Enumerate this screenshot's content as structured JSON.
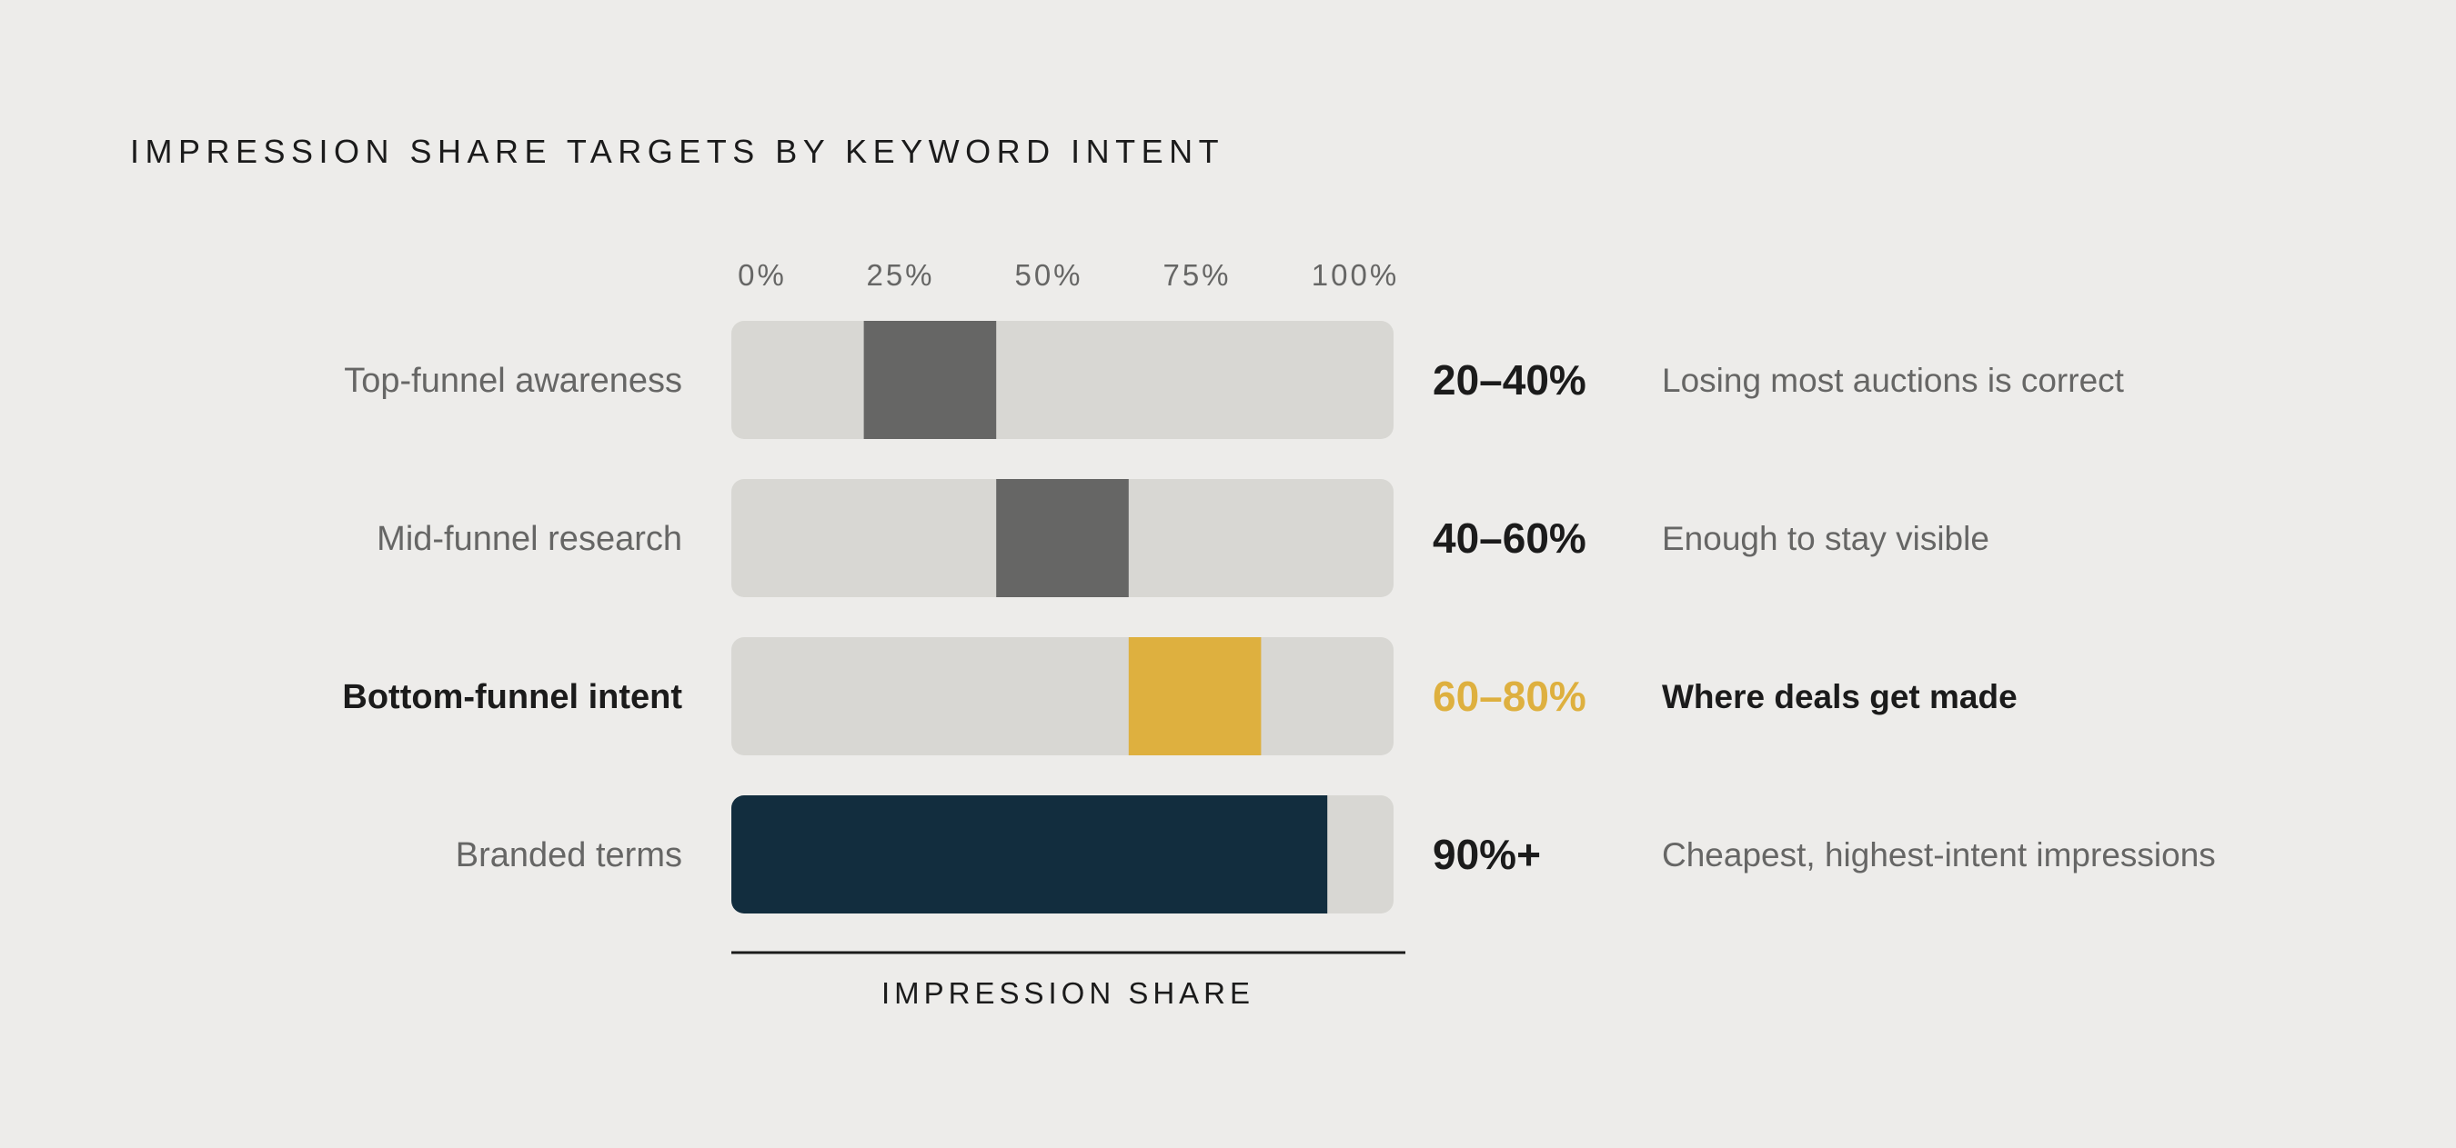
{
  "title": "IMPRESSION SHARE TARGETS BY KEYWORD INTENT",
  "chart_data": {
    "type": "bar",
    "title": "IMPRESSION SHARE TARGETS BY KEYWORD INTENT",
    "xlabel": "IMPRESSION SHARE",
    "ylabel": "",
    "xlim": [
      0,
      100
    ],
    "ticks": [
      "0%",
      "25%",
      "50%",
      "75%",
      "100%"
    ],
    "grid": false,
    "legend": "none",
    "categories": [
      "Top-funnel awareness",
      "Mid-funnel research",
      "Bottom-funnel intent",
      "Branded terms"
    ],
    "series": [
      {
        "ranges": [
          [
            20,
            40
          ],
          [
            40,
            60
          ],
          [
            60,
            80
          ],
          [
            0,
            90
          ]
        ]
      }
    ],
    "rows": [
      {
        "label": "Top-funnel awareness",
        "start": 20,
        "end": 40,
        "range_label": "20–40%",
        "note": "Losing most auctions is correct",
        "color": "#666665",
        "range_color": "#1b1b1b",
        "emphasis": false
      },
      {
        "label": "Mid-funnel research",
        "start": 40,
        "end": 60,
        "range_label": "40–60%",
        "note": "Enough to stay visible",
        "color": "#666665",
        "range_color": "#1b1b1b",
        "emphasis": false
      },
      {
        "label": "Bottom-funnel intent",
        "start": 60,
        "end": 80,
        "range_label": "60–80%",
        "note": "Where deals get made",
        "color": "#deb03f",
        "range_color": "#deb03f",
        "emphasis": true
      },
      {
        "label": "Branded terms",
        "start": 0,
        "end": 90,
        "range_label": "90%+",
        "note": "Cheapest, highest-intent impressions",
        "color": "#122d3e",
        "range_color": "#1b1b1b",
        "emphasis": false
      }
    ],
    "colors": {
      "track": "#d8d7d3",
      "label": "#666665",
      "label_emphasis": "#1b1b1b",
      "tick": "#666665",
      "axis": "#1b1b1b"
    }
  }
}
